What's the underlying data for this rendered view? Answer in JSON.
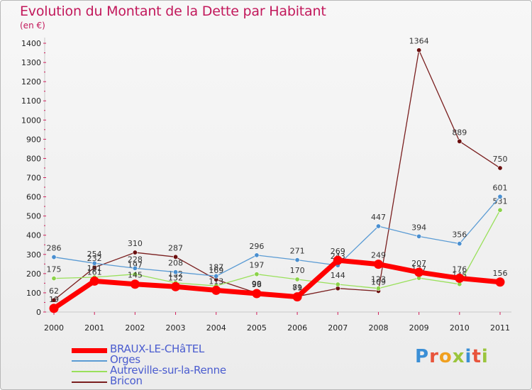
{
  "header": {
    "title": "Evolution du Montant de la Dette par Habitant",
    "unit": "(en €)"
  },
  "logo": {
    "letters": [
      "P",
      "r",
      "o",
      "x",
      "i",
      "t",
      "i"
    ]
  },
  "chart_data": {
    "type": "line",
    "title": "Evolution du Montant de la Dette par Habitant",
    "ylabel": "(en €)",
    "xlabel": "",
    "ylim": [
      0,
      1400
    ],
    "yticks": [
      0,
      100,
      200,
      300,
      400,
      500,
      600,
      700,
      800,
      900,
      1000,
      1100,
      1200,
      1300,
      1400
    ],
    "x": [
      2000,
      2001,
      2002,
      2003,
      2004,
      2005,
      2006,
      2007,
      2008,
      2009,
      2010,
      2011
    ],
    "grid": false,
    "legend_position": "bottom-left",
    "series": [
      {
        "name": "Bricon",
        "color": "#7a1f1f",
        "marker": "#6b0f0f",
        "values": [
          62,
          232,
          310,
          287,
          169,
          99,
          81,
          123,
          109,
          1364,
          889,
          750
        ],
        "labels": [
          "62",
          "232",
          "310",
          "287",
          "169",
          "99",
          "81",
          "",
          "109",
          "1364",
          "889",
          "750"
        ]
      },
      {
        "name": "Autreville-sur-la-Renne",
        "color": "#99e05a",
        "marker": "#8bd24a",
        "values": [
          175,
          181,
          197,
          152,
          136,
          197,
          170,
          144,
          123,
          177,
          145,
          531
        ],
        "labels": [
          "175",
          "181",
          "197",
          "152",
          "",
          "197",
          "170",
          "144",
          "123",
          "177",
          "145",
          "531"
        ]
      },
      {
        "name": "Orges",
        "color": "#5a9bd4",
        "marker": "#4a8fd0",
        "values": [
          286,
          254,
          228,
          208,
          187,
          296,
          271,
          243,
          447,
          394,
          356,
          601
        ],
        "labels": [
          "286",
          "254",
          "228",
          "208",
          "187",
          "296",
          "271",
          "243",
          "447",
          "394",
          "356",
          "601"
        ]
      },
      {
        "name": "BRAUX-LE-CHâTEL",
        "color": "#ff0000",
        "marker": "#ff0000",
        "values": [
          19,
          161,
          145,
          132,
          113,
          96,
          79,
          269,
          249,
          207,
          176,
          156
        ],
        "labels": [
          "19",
          "161",
          "145",
          "132",
          "113",
          "96",
          "79",
          "269",
          "249",
          "207",
          "176",
          "156"
        ]
      }
    ]
  },
  "legend": [
    {
      "label": "BRAUX-LE-CHâTEL",
      "color": "#ff0000"
    },
    {
      "label": "Orges",
      "color": "#5a9bd4"
    },
    {
      "label": "Autreville-sur-la-Renne",
      "color": "#99e05a"
    },
    {
      "label": "Bricon",
      "color": "#7a1f1f"
    }
  ]
}
